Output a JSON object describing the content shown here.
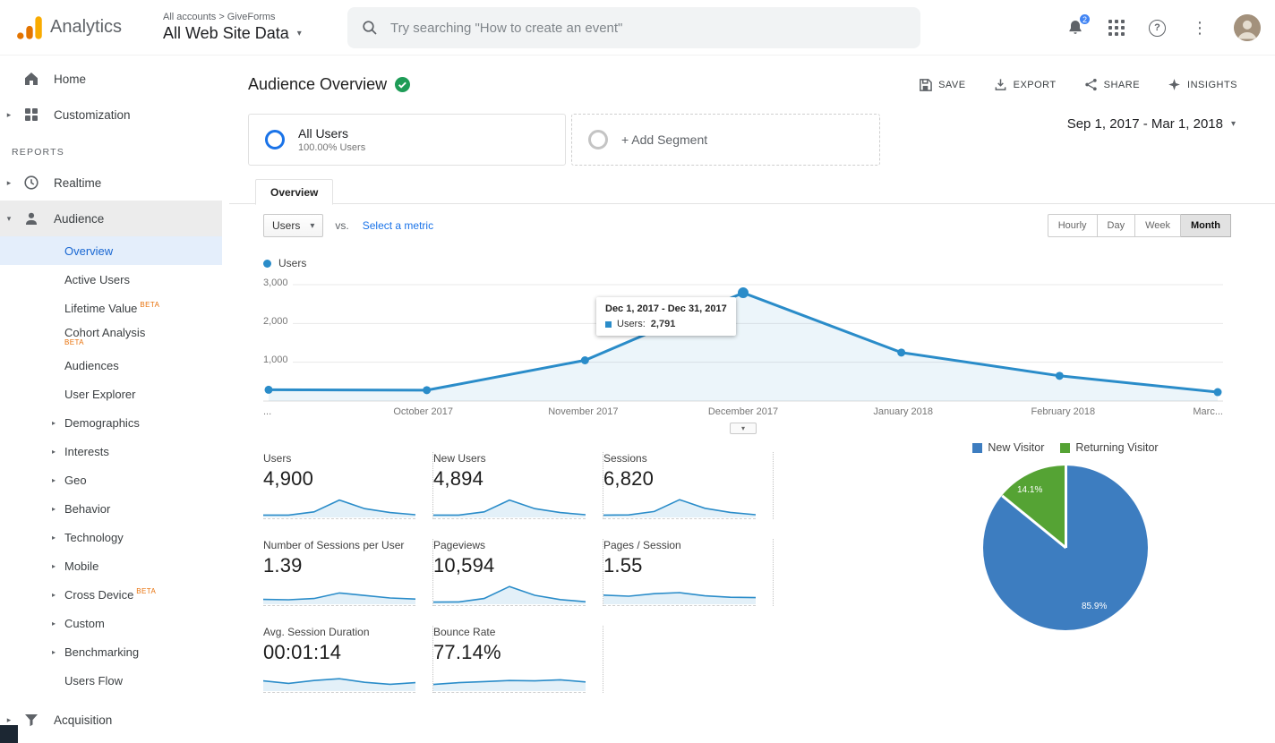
{
  "ui": {
    "caret_down": "▾",
    "help_glyph": "?",
    "kebab_glyph": "⋮"
  },
  "topbar": {
    "product_name": "Analytics",
    "breadcrumb": {
      "account": "All accounts",
      "separator": ">",
      "property_group": "GiveForms"
    },
    "property_selector": "All Web Site Data",
    "search_placeholder": "Try searching \"How to create an event\"",
    "notification_badge": "2"
  },
  "sidebar": {
    "home": {
      "label": "Home"
    },
    "customization": {
      "label": "Customization",
      "caret": "▸"
    },
    "reports_label": "REPORTS",
    "realtime": {
      "label": "Realtime",
      "caret": "▸"
    },
    "audience": {
      "label": "Audience",
      "caret": "▾"
    },
    "audience_children": [
      {
        "label": "Overview",
        "selected": true
      },
      {
        "label": "Active Users"
      },
      {
        "label": "Lifetime Value",
        "beta": "BETA"
      },
      {
        "label": "Cohort Analysis",
        "beta": "BETA",
        "wrap": true
      },
      {
        "label": "Audiences"
      },
      {
        "label": "User Explorer"
      },
      {
        "label": "Demographics",
        "caret": "▸"
      },
      {
        "label": "Interests",
        "caret": "▸"
      },
      {
        "label": "Geo",
        "caret": "▸"
      },
      {
        "label": "Behavior",
        "caret": "▸"
      },
      {
        "label": "Technology",
        "caret": "▸"
      },
      {
        "label": "Mobile",
        "caret": "▸"
      },
      {
        "label": "Cross Device",
        "beta": "BETA",
        "caret": "▸"
      },
      {
        "label": "Custom",
        "caret": "▸"
      },
      {
        "label": "Benchmarking",
        "caret": "▸"
      },
      {
        "label": "Users Flow"
      }
    ],
    "acquisition": {
      "label": "Acquisition",
      "caret": "▸"
    },
    "behavior": {
      "label": "Behavior",
      "caret": "▸"
    }
  },
  "header": {
    "title": "Audience Overview",
    "actions": [
      {
        "label": "SAVE"
      },
      {
        "label": "EXPORT"
      },
      {
        "label": "SHARE"
      },
      {
        "label": "INSIGHTS"
      }
    ]
  },
  "segments": {
    "all_users": {
      "title": "All Users",
      "subtitle": "100.00% Users"
    },
    "add_segment": "+ Add Segment",
    "date_range": "Sep 1, 2017 - Mar 1, 2018"
  },
  "tabs": [
    {
      "label": "Overview",
      "active": true
    }
  ],
  "controls": {
    "metric_selector": "Users",
    "vs_label": "vs.",
    "select_metric": "Select a metric",
    "granularity": [
      {
        "label": "Hourly"
      },
      {
        "label": "Day"
      },
      {
        "label": "Week"
      },
      {
        "label": "Month",
        "active": true
      }
    ]
  },
  "chart_data": [
    {
      "id": "users-over-time",
      "type": "line",
      "title": "Users",
      "legend": [
        "Users"
      ],
      "legend_position": "top-left",
      "grid": true,
      "x": [
        "...",
        "October 2017",
        "November 2017",
        "December 2017",
        "January 2018",
        "February 2018",
        "Marc..."
      ],
      "values": [
        290,
        280,
        1050,
        2791,
        1250,
        650,
        230
      ],
      "ylim": [
        0,
        3000
      ],
      "yticks": [
        "1,000",
        "2,000",
        "3,000"
      ],
      "line_color": "#2a8cc9",
      "tooltip": {
        "title": "Dec 1, 2017 - Dec 31, 2017",
        "label": "Users:",
        "value": "2,791",
        "point_index": 3
      }
    },
    {
      "id": "visitor-type",
      "type": "pie",
      "legend": [
        "New Visitor",
        "Returning Visitor"
      ],
      "legend_position": "top",
      "slices": [
        {
          "label": "New Visitor",
          "pct": 85.9,
          "display": "85.9%",
          "color": "#3d7dc0"
        },
        {
          "label": "Returning Visitor",
          "pct": 14.1,
          "display": "14.1%",
          "color": "#55a334"
        }
      ]
    }
  ],
  "stats": {
    "cards": [
      {
        "label": "Users",
        "value": "4,900",
        "spark": [
          8,
          8,
          26,
          92,
          44,
          22,
          10
        ]
      },
      {
        "label": "New Users",
        "value": "4,894",
        "spark": [
          8,
          8,
          26,
          92,
          44,
          22,
          10
        ]
      },
      {
        "label": "Sessions",
        "value": "6,820",
        "spark": [
          8,
          9,
          28,
          94,
          46,
          23,
          10
        ]
      },
      {
        "label": "Number of Sessions per User",
        "value": "1.39",
        "spark": [
          22,
          20,
          27,
          58,
          44,
          30,
          24
        ]
      },
      {
        "label": "Pageviews",
        "value": "10,594",
        "spark": [
          7,
          8,
          27,
          94,
          45,
          21,
          9
        ]
      },
      {
        "label": "Pages / Session",
        "value": "1.55",
        "spark": [
          46,
          40,
          54,
          60,
          42,
          34,
          32
        ]
      },
      {
        "label": "Avg. Session Duration",
        "value": "00:01:14",
        "spark": [
          52,
          38,
          54,
          64,
          44,
          33,
          42
        ]
      },
      {
        "label": "Bounce Rate",
        "value": "77.14%",
        "spark": [
          32,
          42,
          48,
          54,
          52,
          58,
          46
        ]
      }
    ]
  }
}
